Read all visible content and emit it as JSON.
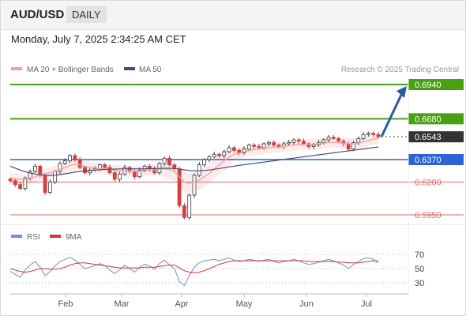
{
  "header": {
    "symbol": "AUD/USD",
    "timeframe": "DAILY"
  },
  "datetime": "Monday, July 7, 2025 2:34:25 AM CET",
  "legend": {
    "ma20": "MA 20 + Bollinger Bands",
    "ma50": "MA 50",
    "credit": "Research © 2025 Trading Central"
  },
  "rsi_legend": {
    "rsi": "RSI",
    "ma9": "9MA"
  },
  "colors": {
    "up_candle": "#3a3a3a",
    "down_candle": "#d04040",
    "ma20": "#f4a0a0",
    "ma50": "#3f4d7e",
    "bollinger_fill": "#fde8e8",
    "target": "#48a012",
    "pivot": "#2d63d6",
    "support": "#e86a6a",
    "arrow": "#2a5aa6",
    "rsi": "#6f8fd8",
    "rsi_ma": "#e03030"
  },
  "chart_data": [
    {
      "type": "candlestick",
      "title": "AUD/USD",
      "ylim": [
        0.59,
        0.7
      ],
      "x_ticks": [
        "Feb",
        "Mar",
        "Apr",
        "May",
        "Jun",
        "Jul"
      ],
      "price_levels": [
        {
          "label": "0.6940",
          "value": 0.694,
          "role": "target"
        },
        {
          "label": "0.6680",
          "value": 0.668,
          "role": "target"
        },
        {
          "label": "0.6543",
          "value": 0.6543,
          "role": "last"
        },
        {
          "label": "0.6370",
          "value": 0.637,
          "role": "pivot"
        },
        {
          "label": "0.6200",
          "value": 0.62,
          "role": "support"
        },
        {
          "label": "0.5950",
          "value": 0.595,
          "role": "support"
        }
      ],
      "forecast_arrow": {
        "from": 0.6543,
        "to": 0.694
      },
      "series": [
        {
          "name": "AUD/USD",
          "sampled_close": [
            0.621,
            0.618,
            0.615,
            0.623,
            0.628,
            0.632,
            0.625,
            0.612,
            0.62,
            0.628,
            0.634,
            0.636,
            0.64,
            0.637,
            0.631,
            0.627,
            0.629,
            0.63,
            0.633,
            0.631,
            0.627,
            0.622,
            0.626,
            0.631,
            0.628,
            0.624,
            0.629,
            0.632,
            0.63,
            0.627,
            0.634,
            0.638,
            0.633,
            0.63,
            0.602,
            0.593,
            0.61,
            0.625,
            0.633,
            0.637,
            0.639,
            0.641,
            0.64,
            0.643,
            0.646,
            0.644,
            0.642,
            0.645,
            0.648,
            0.647,
            0.646,
            0.649,
            0.65,
            0.648,
            0.647,
            0.649,
            0.65,
            0.652,
            0.651,
            0.649,
            0.647,
            0.648,
            0.65,
            0.652,
            0.654,
            0.653,
            0.651,
            0.649,
            0.645,
            0.65,
            0.653,
            0.656,
            0.657,
            0.656,
            0.6543
          ]
        },
        {
          "name": "MA 20",
          "sampled_close": [
            0.623,
            0.6225,
            0.622,
            0.6215,
            0.6225,
            0.624,
            0.6255,
            0.6265,
            0.627,
            0.628,
            0.6295,
            0.631,
            0.6325,
            0.6335,
            0.633,
            0.632,
            0.631,
            0.6305,
            0.63,
            0.63,
            0.6295,
            0.629,
            0.6285,
            0.6285,
            0.6285,
            0.628,
            0.628,
            0.6285,
            0.629,
            0.629,
            0.6295,
            0.63,
            0.6295,
            0.628,
            0.624,
            0.62,
            0.619,
            0.62,
            0.6215,
            0.624,
            0.6265,
            0.63,
            0.633,
            0.636,
            0.639,
            0.641,
            0.642,
            0.643,
            0.644,
            0.6445,
            0.645,
            0.6455,
            0.646,
            0.6465,
            0.6465,
            0.647,
            0.6475,
            0.648,
            0.6485,
            0.6485,
            0.6485,
            0.6485,
            0.649,
            0.6495,
            0.65,
            0.65,
            0.65,
            0.6495,
            0.649,
            0.649,
            0.6495,
            0.6505,
            0.6515,
            0.6525,
            0.653
          ]
        },
        {
          "name": "MA 50",
          "sampled_close": [
            0.632,
            0.6305,
            0.629,
            0.6278,
            0.6268,
            0.626,
            0.6255,
            0.625,
            0.625,
            0.6252,
            0.6256,
            0.6262,
            0.6268,
            0.6275,
            0.628,
            0.6284,
            0.6287,
            0.629,
            0.6293,
            0.6295,
            0.6297,
            0.6298,
            0.6299,
            0.63,
            0.63,
            0.63,
            0.63,
            0.63,
            0.6301,
            0.6302,
            0.6303,
            0.6304,
            0.6304,
            0.6302,
            0.6298,
            0.6292,
            0.6287,
            0.6285,
            0.6285,
            0.6287,
            0.6291,
            0.6296,
            0.6302,
            0.6308,
            0.6314,
            0.632,
            0.6326,
            0.6331,
            0.6336,
            0.6341,
            0.6346,
            0.6351,
            0.6356,
            0.6361,
            0.6366,
            0.6371,
            0.6376,
            0.6381,
            0.6386,
            0.6391,
            0.6396,
            0.6401,
            0.6406,
            0.6411,
            0.6416,
            0.6421,
            0.6426,
            0.6431,
            0.6436,
            0.6441,
            0.6446,
            0.6451,
            0.6456,
            0.6461,
            0.6466
          ]
        }
      ]
    },
    {
      "type": "line",
      "title": "RSI",
      "ylim": [
        20,
        80
      ],
      "y_ticks": [
        "70",
        "50",
        "30"
      ],
      "y_tick_values": [
        70,
        50,
        30
      ],
      "series": [
        {
          "name": "RSI",
          "values": [
            46,
            42,
            38,
            48,
            55,
            60,
            52,
            40,
            46,
            54,
            60,
            63,
            66,
            62,
            56,
            50,
            52,
            54,
            57,
            54,
            48,
            43,
            48,
            55,
            50,
            45,
            52,
            56,
            54,
            49,
            57,
            62,
            55,
            50,
            32,
            26,
            40,
            52,
            58,
            61,
            62,
            63,
            61,
            63,
            65,
            62,
            60,
            61,
            63,
            62,
            60,
            62,
            63,
            60,
            58,
            60,
            61,
            63,
            61,
            58,
            56,
            57,
            59,
            61,
            63,
            61,
            58,
            55,
            50,
            56,
            60,
            64,
            65,
            63,
            58
          ]
        },
        {
          "name": "9MA",
          "values": [
            50,
            48,
            46,
            45,
            46,
            48,
            50,
            50,
            49,
            49,
            50,
            52,
            55,
            57,
            58,
            58,
            57,
            56,
            55,
            54,
            53,
            52,
            51,
            51,
            51,
            51,
            51,
            52,
            52,
            52,
            53,
            54,
            55,
            55,
            51,
            47,
            45,
            44,
            45,
            47,
            50,
            53,
            56,
            58,
            60,
            61,
            61,
            61,
            61,
            61,
            61,
            61,
            61,
            61,
            61,
            61,
            61,
            61,
            61,
            61,
            60,
            60,
            60,
            60,
            60,
            60,
            59,
            59,
            58,
            58,
            58,
            59,
            60,
            61,
            61
          ]
        }
      ]
    }
  ]
}
